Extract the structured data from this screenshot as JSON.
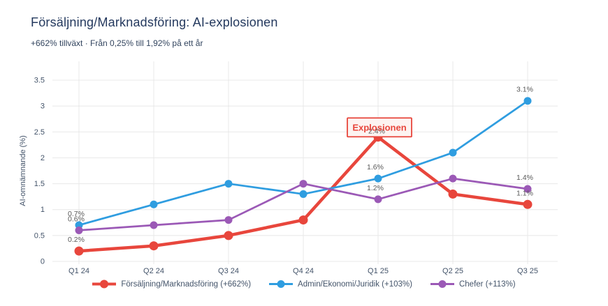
{
  "header": {
    "title": "Försäljning/Marknadsföring: AI-explosionen",
    "subtitle": "+662% tillväxt · Från 0,25% till 1,92% på ett år"
  },
  "chart_data": {
    "type": "line",
    "title": "Försäljning/Marknadsföring: AI-explosionen",
    "subtitle": "+662% tillväxt · Från 0,25% till 1,92% på ett år",
    "categories": [
      "Q1 24",
      "Q2 24",
      "Q3 24",
      "Q4 24",
      "Q1 25",
      "Q2 25",
      "Q3 25"
    ],
    "series": [
      {
        "name": "Försäljning/Marknadsföring (+662%)",
        "color": "#e8463c",
        "line_width": 4.5,
        "marker_radius": 6.5,
        "values": [
          0.2,
          0.3,
          0.5,
          0.8,
          2.4,
          1.3,
          1.1
        ],
        "point_labels": [
          "0.2%",
          null,
          null,
          null,
          "2.4%",
          null,
          "1.1%"
        ]
      },
      {
        "name": "Admin/Ekonomi/Juridik (+103%)",
        "color": "#2f9de0",
        "line_width": 2.75,
        "marker_radius": 5.5,
        "values": [
          0.7,
          1.1,
          1.5,
          1.3,
          1.6,
          2.1,
          3.1
        ],
        "point_labels": [
          "0.7%",
          null,
          null,
          null,
          "1.6%",
          null,
          "3.1%"
        ]
      },
      {
        "name": "Chefer (+113%)",
        "color": "#9b59b6",
        "line_width": 2.75,
        "marker_radius": 5.5,
        "values": [
          0.6,
          0.7,
          0.8,
          1.5,
          1.2,
          1.6,
          1.4
        ],
        "point_labels": [
          "0.6%",
          null,
          null,
          null,
          "1.2%",
          null,
          "1.4%"
        ]
      }
    ],
    "ylabel": "AI-omnämnande (%)",
    "xlabel": "",
    "ylim": [
      0,
      3.5
    ],
    "ytick_step": 0.5,
    "ytick_labels": [
      "0",
      "0.5",
      "1",
      "1.5",
      "2",
      "2.5",
      "3",
      "3.5"
    ],
    "grid": true,
    "legend_position": "bottom",
    "annotation": {
      "text": "Explosionen",
      "category": "Q1 25",
      "value": 2.4,
      "text_color": "#e8463c",
      "border_color": "#e8463c",
      "fill_color": "#fdf3f1",
      "hidden_point_label": "2.4%"
    }
  },
  "colors": {
    "background": "#ffffff",
    "grid": "#e8e8e8",
    "axis_text": "#44546a",
    "title_text": "#24395e",
    "point_label_text": "#595959"
  }
}
